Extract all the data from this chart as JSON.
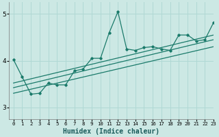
{
  "xlabel": "Humidex (Indice chaleur)",
  "background_color": "#cce8e4",
  "grid_color": "#b0d8d4",
  "line_color": "#1a7a6a",
  "xlim": [
    -0.5,
    23
  ],
  "ylim": [
    2.75,
    5.25
  ],
  "yticks": [
    3,
    4,
    5
  ],
  "xticks": [
    0,
    1,
    2,
    3,
    4,
    5,
    6,
    7,
    8,
    9,
    10,
    11,
    12,
    13,
    14,
    15,
    16,
    17,
    18,
    19,
    20,
    21,
    22,
    23
  ],
  "series_x": [
    0,
    1,
    2,
    3,
    4,
    5,
    6,
    7,
    8,
    9,
    10,
    11,
    12,
    13,
    14,
    15,
    16,
    17,
    18,
    19,
    20,
    21,
    22,
    23
  ],
  "series_y": [
    4.02,
    3.65,
    3.28,
    3.3,
    3.52,
    3.48,
    3.48,
    3.78,
    3.82,
    4.05,
    4.05,
    4.6,
    5.05,
    4.25,
    4.22,
    4.28,
    4.3,
    4.25,
    4.22,
    4.55,
    4.55,
    4.42,
    4.45,
    4.82
  ],
  "regression_lines": [
    {
      "x": [
        0,
        23
      ],
      "y": [
        3.52,
        4.55
      ]
    },
    {
      "x": [
        0,
        23
      ],
      "y": [
        3.42,
        4.45
      ]
    },
    {
      "x": [
        0,
        23
      ],
      "y": [
        3.3,
        4.3
      ]
    }
  ]
}
